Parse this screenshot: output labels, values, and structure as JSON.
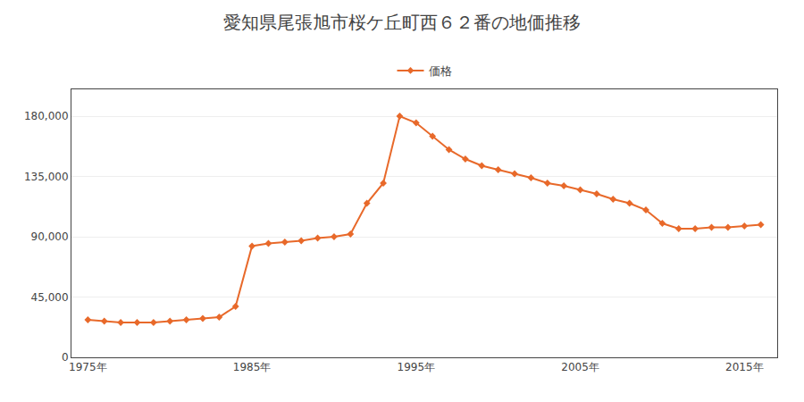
{
  "chart_data": {
    "type": "line",
    "title": "愛知県尾張旭市桜ケ丘町西６２番の地価推移",
    "x": [
      1975,
      1976,
      1977,
      1978,
      1979,
      1980,
      1981,
      1982,
      1983,
      1984,
      1985,
      1986,
      1987,
      1988,
      1989,
      1990,
      1991,
      1992,
      1993,
      1994,
      1995,
      1996,
      1997,
      1998,
      1999,
      2000,
      2001,
      2002,
      2003,
      2004,
      2005,
      2006,
      2007,
      2008,
      2009,
      2010,
      2011,
      2012,
      2013,
      2014,
      2015,
      2016
    ],
    "series": [
      {
        "name": "価格",
        "color": "#e8692a",
        "marker": "diamond",
        "line_style": "solid",
        "values": [
          28000,
          27000,
          26000,
          26000,
          26000,
          27000,
          28000,
          29000,
          30000,
          38000,
          83000,
          85000,
          86000,
          87000,
          89000,
          90000,
          92000,
          115000,
          130000,
          180000,
          175000,
          165000,
          155000,
          148000,
          143000,
          140000,
          137000,
          134000,
          130000,
          128000,
          125000,
          122000,
          118000,
          115000,
          110000,
          100000,
          96000,
          96000,
          97000,
          97000,
          98000,
          99000
        ]
      }
    ],
    "xlim": [
      1974,
      2017
    ],
    "xticks": [
      {
        "value": 1975,
        "label": "1975年"
      },
      {
        "value": 1985,
        "label": "1985年"
      },
      {
        "value": 1995,
        "label": "1995年"
      },
      {
        "value": 2005,
        "label": "2005年"
      },
      {
        "value": 2015,
        "label": "2015年"
      }
    ],
    "ylim": [
      0,
      200000
    ],
    "yticks": [
      0,
      {
        "value": 45000,
        "label": "45,000"
      },
      {
        "value": 90000,
        "label": "90,000"
      },
      {
        "value": 135000,
        "label": "135,000"
      },
      {
        "value": 180000,
        "label": "180,000"
      }
    ],
    "grid": true,
    "legend": "upper center"
  }
}
